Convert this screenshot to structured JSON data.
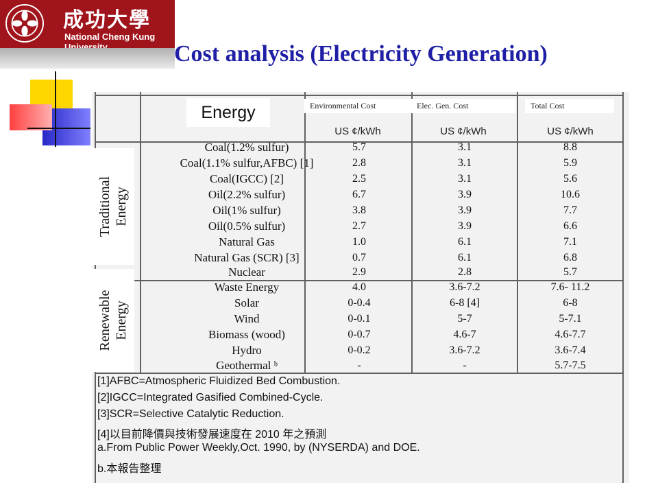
{
  "logo": {
    "chinese": "成功大學",
    "english": "National Cheng Kung University"
  },
  "title": "Cost analysis (Electricity Generation)",
  "header": {
    "energy": "Energy",
    "env_cost": "Environmental Cost",
    "gen_cost": "Elec. Gen. Cost",
    "total_cost": "Total Cost",
    "unit": "US ¢/kWh"
  },
  "categories": {
    "traditional_1": "Traditional",
    "traditional_2": "Energy",
    "renewable_1": "Renewable",
    "renewable_2": "Energy"
  },
  "rows": [
    {
      "name": "Coal(1.2% sulfur)",
      "env": "5.7",
      "gen": "3.1",
      "total": "8.8"
    },
    {
      "name": "Coal(1.1% sulfur,AFBC) [1]",
      "env": "2.8",
      "gen": "3.1",
      "total": "5.9"
    },
    {
      "name": "Coal(IGCC) [2]",
      "env": "2.5",
      "gen": "3.1",
      "total": "5.6"
    },
    {
      "name": "Oil(2.2% sulfur)",
      "env": "6.7",
      "gen": "3.9",
      "total": "10.6"
    },
    {
      "name": "Oil(1% sulfur)",
      "env": "3.8",
      "gen": "3.9",
      "total": "7.7"
    },
    {
      "name": "Oil(0.5% sulfur)",
      "env": "2.7",
      "gen": "3.9",
      "total": "6.6"
    },
    {
      "name": "Natural Gas",
      "env": "1.0",
      "gen": "6.1",
      "total": "7.1"
    },
    {
      "name": "Natural Gas (SCR) [3]",
      "env": "0.7",
      "gen": "6.1",
      "total": "6.8"
    },
    {
      "name": "Nuclear",
      "env": "2.9",
      "gen": "2.8",
      "total": "5.7"
    },
    {
      "name": "Waste Energy",
      "env": "4.0",
      "gen": "3.6-7.2",
      "total": "7.6- 11.2"
    },
    {
      "name": "Solar",
      "env": "0-0.4",
      "gen": "6-8 [4]",
      "total": "6-8"
    },
    {
      "name": "Wind",
      "env": "0-0.1",
      "gen": "5-7",
      "total": "5-7.1"
    },
    {
      "name": "Biomass (wood)",
      "env": "0-0.7",
      "gen": "4.6-7",
      "total": "4.6-7.7"
    },
    {
      "name": "Hydro",
      "env": "0-0.2",
      "gen": "3.6-7.2",
      "total": "3.6-7.4"
    },
    {
      "name": "Geothermal ᵇ",
      "env": "-",
      "gen": "-",
      "total": "5.7-7.5"
    }
  ],
  "notes": [
    "[1]AFBC=Atmospheric Fluidized Bed Combustion.",
    "[2]IGCC=Integrated Gasified Combined-Cycle.",
    "[3]SCR=Selective Catalytic Reduction.",
    "[4]以目前降價與技術發展速度在 2010 年之預測",
    "a.From Public Power Weekly,Oct. 1990, by (NYSERDA) and DOE.",
    "b.本報告整理"
  ]
}
